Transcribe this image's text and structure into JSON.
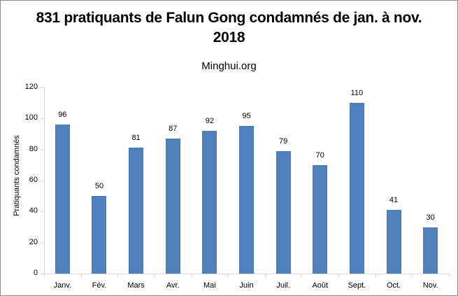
{
  "chart_data": {
    "type": "bar",
    "title": "831 pratiquants de Falun Gong condamnés de jan. à nov. 2018",
    "title_lines": [
      "831 pratiquants de Falun Gong condamnés de jan. à nov.",
      "2018"
    ],
    "subtitle": "Minghui.org",
    "xlabel": "",
    "ylabel": "Pratiquants condamnés",
    "categories": [
      "Janv.",
      "Fév.",
      "Mars",
      "Avr.",
      "Mai",
      "Juin",
      "Juil.",
      "Août",
      "Sept.",
      "Oct.",
      "Nov."
    ],
    "values": [
      96,
      50,
      81,
      87,
      92,
      95,
      79,
      70,
      110,
      41,
      30
    ],
    "ylim": [
      0,
      120
    ],
    "yticks": [
      0,
      20,
      40,
      60,
      80,
      100,
      120
    ],
    "grid": false,
    "legend": null,
    "data_labels": true,
    "bar_color": "#4f81bd"
  }
}
